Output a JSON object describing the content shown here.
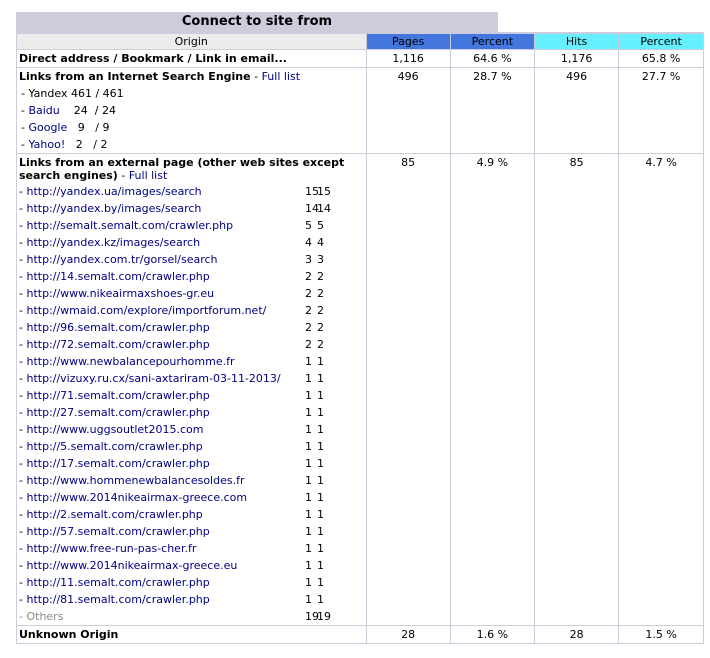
{
  "title": "Connect to site from",
  "columns": {
    "origin": "Origin",
    "pages": "Pages",
    "percent1": "Percent",
    "hits": "Hits",
    "percent2": "Percent"
  },
  "direct": {
    "label": "Direct address / Bookmark / Link in email...",
    "pages": "1,116",
    "pages_pct": "64.6 %",
    "hits": "1,176",
    "hits_pct": "65.8 %"
  },
  "search": {
    "label": "Links from an Internet Search Engine",
    "full_list": "Full list",
    "pages": "496",
    "pages_pct": "28.7 %",
    "hits": "496",
    "hits_pct": "27.7 %",
    "engines": [
      {
        "name": "Yandex",
        "pages": "461",
        "hits": "461"
      },
      {
        "name": "Baidu",
        "pages": "24",
        "hits": "24"
      },
      {
        "name": "Google",
        "pages": "9",
        "hits": "9"
      },
      {
        "name": "Yahoo!",
        "pages": "2",
        "hits": "2"
      }
    ]
  },
  "external": {
    "label": "Links from an external page (other web sites except search engines)",
    "full_list": "Full list",
    "pages": "85",
    "pages_pct": "4.9 %",
    "hits": "85",
    "hits_pct": "4.7 %",
    "links": [
      {
        "url": "http://yandex.ua/images/search",
        "pages": "15",
        "hits": "15"
      },
      {
        "url": "http://yandex.by/images/search",
        "pages": "14",
        "hits": "14"
      },
      {
        "url": "http://semalt.semalt.com/crawler.php",
        "pages": "5",
        "hits": "5"
      },
      {
        "url": "http://yandex.kz/images/search",
        "pages": "4",
        "hits": "4"
      },
      {
        "url": "http://yandex.com.tr/gorsel/search",
        "pages": "3",
        "hits": "3"
      },
      {
        "url": "http://14.semalt.com/crawler.php",
        "pages": "2",
        "hits": "2"
      },
      {
        "url": "http://www.nikeairmaxshoes-gr.eu",
        "pages": "2",
        "hits": "2"
      },
      {
        "url": "http://wmaid.com/explore/importforum.net/",
        "pages": "2",
        "hits": "2"
      },
      {
        "url": "http://96.semalt.com/crawler.php",
        "pages": "2",
        "hits": "2"
      },
      {
        "url": "http://72.semalt.com/crawler.php",
        "pages": "2",
        "hits": "2"
      },
      {
        "url": "http://www.newbalancepourhomme.fr",
        "pages": "1",
        "hits": "1"
      },
      {
        "url": "http://vizuxy.ru.cx/sani-axtariram-03-11-2013/",
        "pages": "1",
        "hits": "1"
      },
      {
        "url": "http://71.semalt.com/crawler.php",
        "pages": "1",
        "hits": "1"
      },
      {
        "url": "http://27.semalt.com/crawler.php",
        "pages": "1",
        "hits": "1"
      },
      {
        "url": "http://www.uggsoutlet2015.com",
        "pages": "1",
        "hits": "1"
      },
      {
        "url": "http://5.semalt.com/crawler.php",
        "pages": "1",
        "hits": "1"
      },
      {
        "url": "http://17.semalt.com/crawler.php",
        "pages": "1",
        "hits": "1"
      },
      {
        "url": "http://www.hommenewbalancesoldes.fr",
        "pages": "1",
        "hits": "1"
      },
      {
        "url": "http://www.2014nikeairmax-greece.com",
        "pages": "1",
        "hits": "1"
      },
      {
        "url": "http://2.semalt.com/crawler.php",
        "pages": "1",
        "hits": "1"
      },
      {
        "url": "http://57.semalt.com/crawler.php",
        "pages": "1",
        "hits": "1"
      },
      {
        "url": "http://www.free-run-pas-cher.fr",
        "pages": "1",
        "hits": "1"
      },
      {
        "url": "http://www.2014nikeairmax-greece.eu",
        "pages": "1",
        "hits": "1"
      },
      {
        "url": "http://11.semalt.com/crawler.php",
        "pages": "1",
        "hits": "1"
      },
      {
        "url": "http://81.semalt.com/crawler.php",
        "pages": "1",
        "hits": "1"
      }
    ],
    "others": {
      "label": "Others",
      "pages": "19",
      "hits": "19"
    }
  },
  "unknown": {
    "label": "Unknown Origin",
    "pages": "28",
    "pages_pct": "1.6 %",
    "hits": "28",
    "hits_pct": "1.5 %"
  },
  "colors": {
    "pages_header": "#4477dd",
    "hits_header": "#66f0ff",
    "title_bg": "#ccccdd",
    "link": "#000080"
  }
}
